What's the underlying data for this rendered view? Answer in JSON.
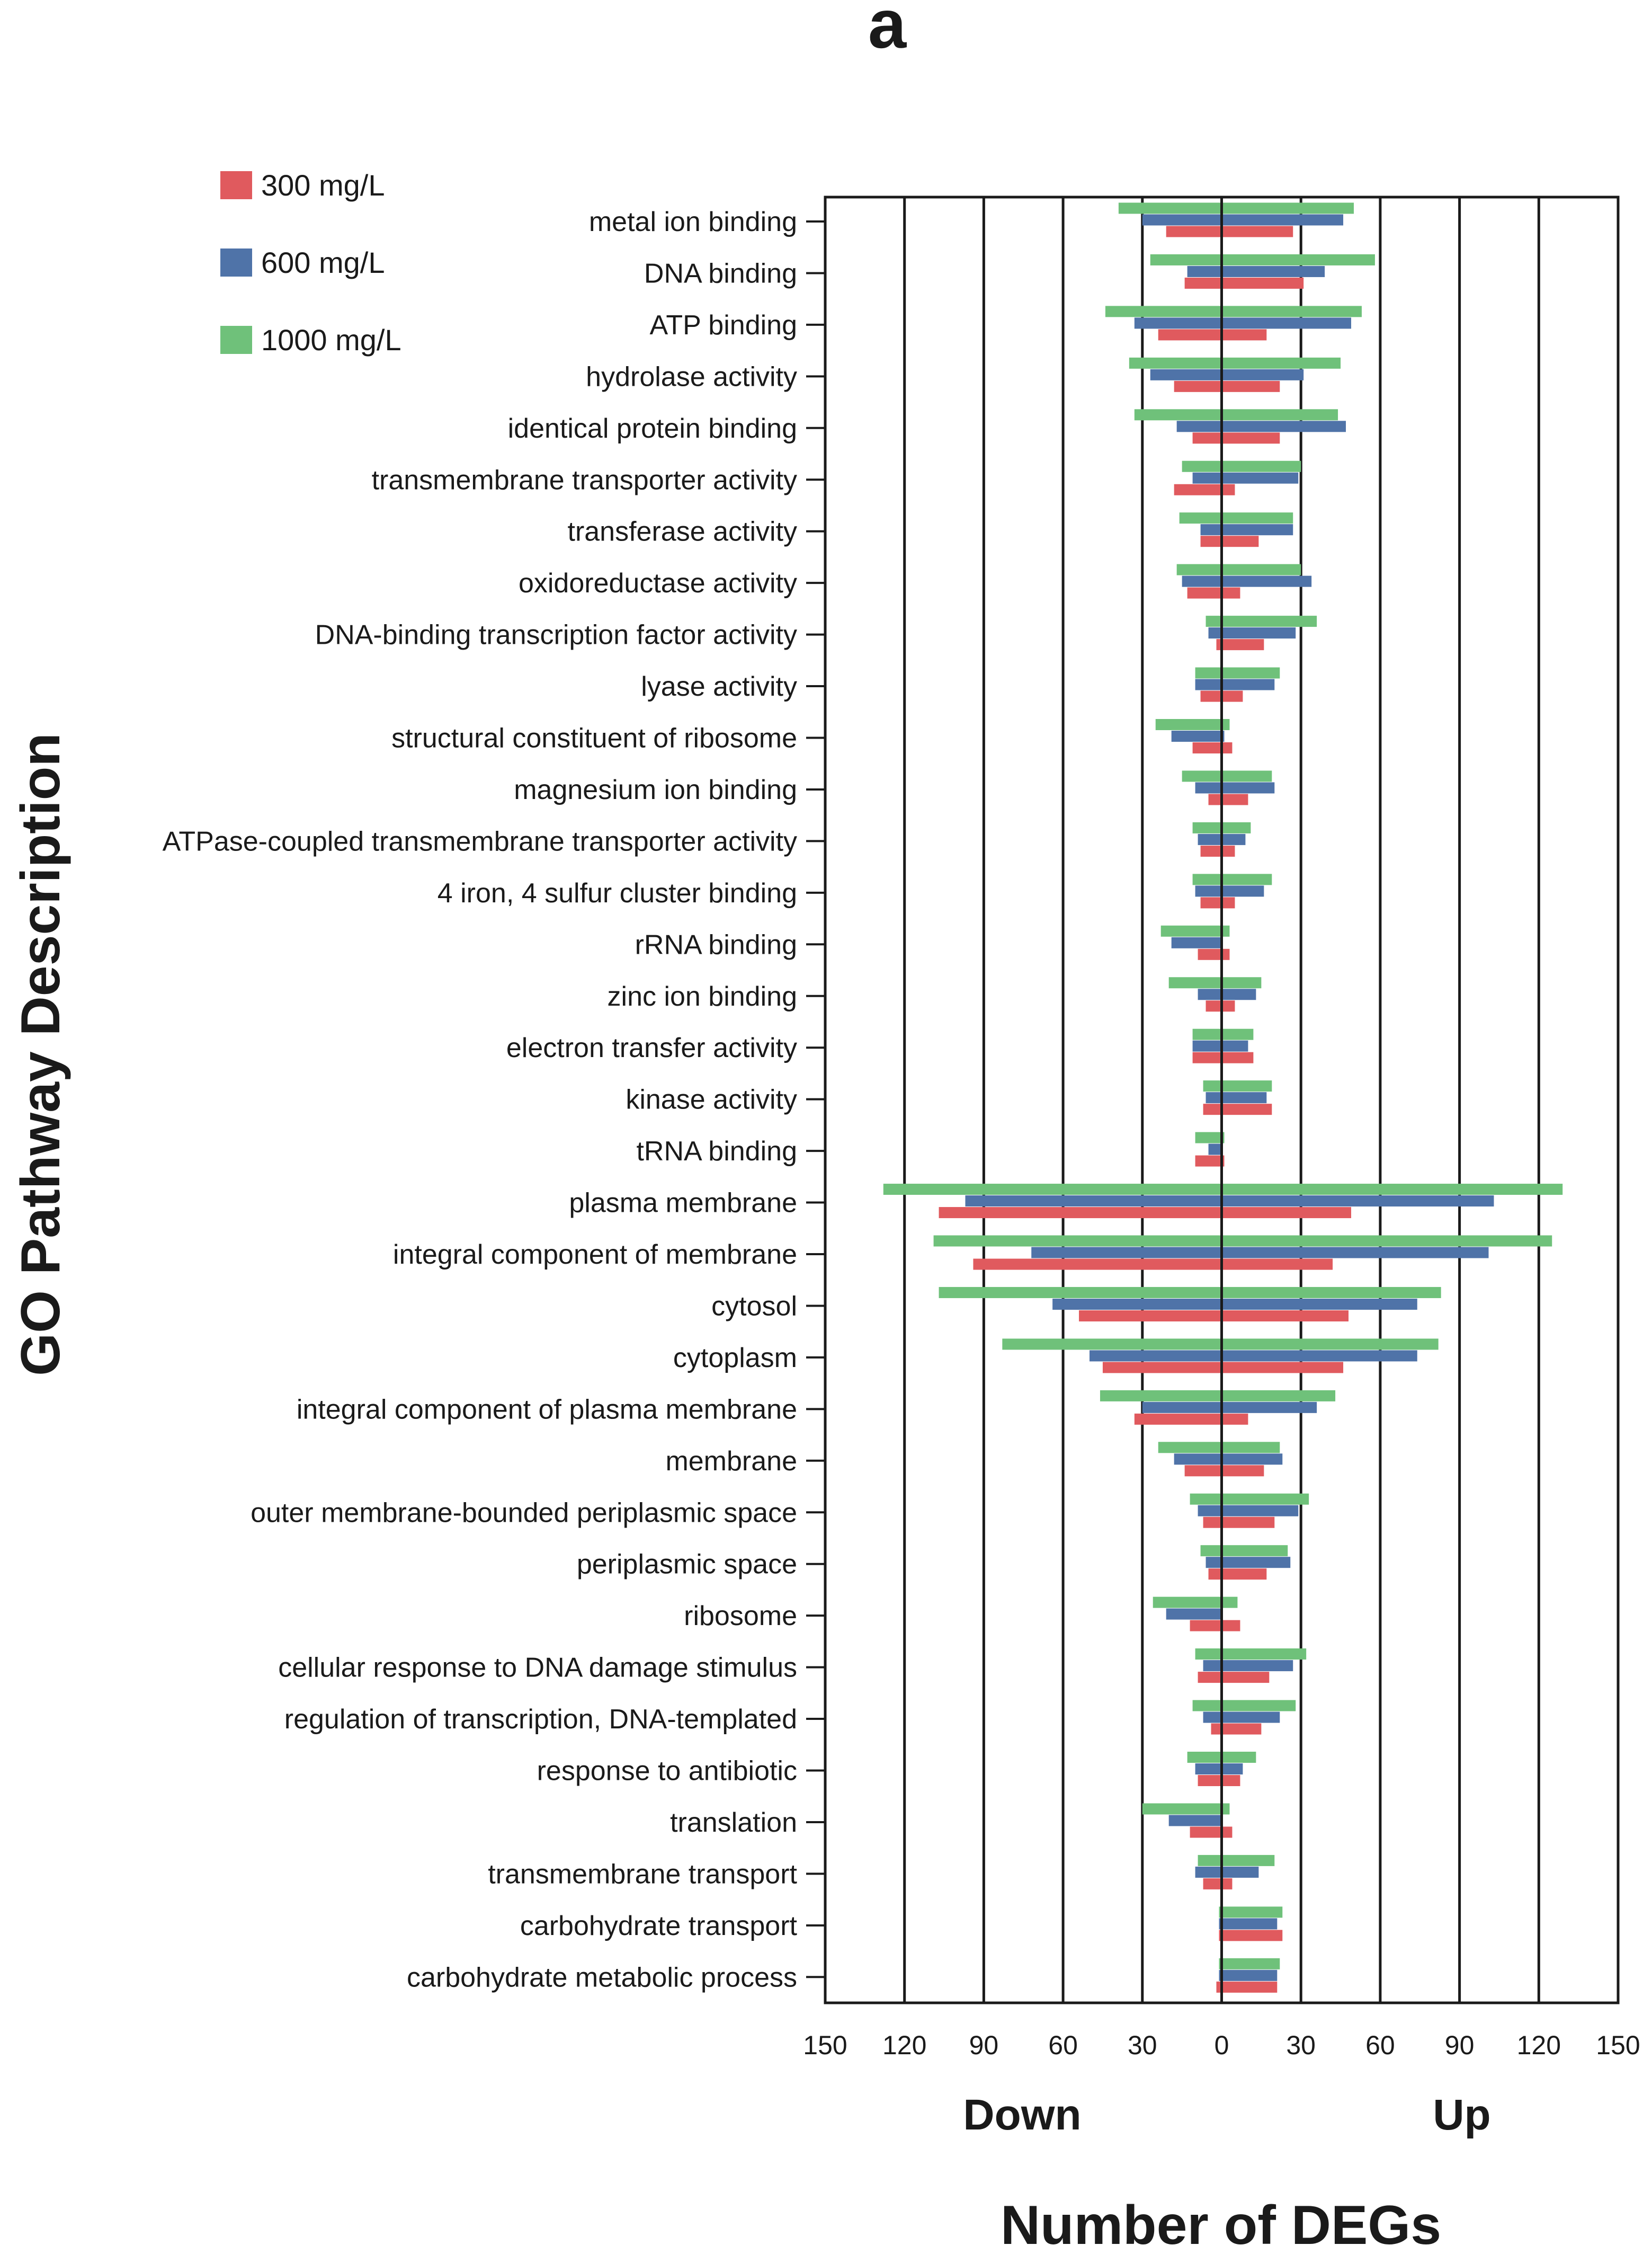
{
  "panel_label": "a",
  "colors": {
    "s300": "#e05a5e",
    "s600": "#4f73a8",
    "s1000": "#6fc17a"
  },
  "chart_data": {
    "type": "bar",
    "orientation": "horizontal-diverging",
    "title": "",
    "xlabel": "Number of DEGs",
    "ylabel": "GO Pathway Description",
    "direction_labels": {
      "down": "Down",
      "up": "Up"
    },
    "xlim": [
      -150,
      150
    ],
    "xticks": [
      -150,
      -120,
      -90,
      -60,
      -30,
      0,
      30,
      60,
      90,
      120,
      150
    ],
    "xtick_labels": [
      "150",
      "120",
      "90",
      "60",
      "30",
      "0",
      "30",
      "60",
      "90",
      "120",
      "150"
    ],
    "grid": "vertical",
    "legend_position": "top-left",
    "categories": [
      "metal ion binding",
      "DNA binding",
      "ATP binding",
      "hydrolase activity",
      "identical protein binding",
      "transmembrane transporter activity",
      "transferase activity",
      "oxidoreductase activity",
      "DNA-binding transcription factor activity",
      "lyase activity",
      "structural constituent of ribosome",
      "magnesium ion binding",
      "ATPase-coupled transmembrane transporter activity",
      "4 iron, 4 sulfur cluster binding",
      "rRNA binding",
      "zinc ion binding",
      "electron transfer activity",
      "kinase activity",
      "tRNA binding",
      "plasma membrane",
      "integral component of membrane",
      "cytosol",
      "cytoplasm",
      "integral component of plasma membrane",
      "membrane",
      "outer membrane-bounded periplasmic space",
      "periplasmic space",
      "ribosome",
      "cellular response to DNA damage stimulus",
      "regulation of transcription, DNA-templated",
      "response to antibiotic",
      "translation",
      "transmembrane transport",
      "carbohydrate transport",
      "carbohydrate metabolic process"
    ],
    "series": [
      {
        "name": "300 mg/L",
        "down": [
          21,
          14,
          24,
          18,
          11,
          18,
          8,
          13,
          2,
          8,
          11,
          5,
          8,
          8,
          9,
          6,
          11,
          7,
          10,
          107,
          94,
          54,
          45,
          33,
          14,
          7,
          5,
          12,
          9,
          4,
          9,
          12,
          7,
          1,
          2
        ],
        "up": [
          27,
          31,
          17,
          22,
          22,
          5,
          14,
          7,
          16,
          8,
          4,
          10,
          5,
          5,
          3,
          5,
          12,
          19,
          1,
          49,
          42,
          48,
          46,
          10,
          16,
          20,
          17,
          7,
          18,
          15,
          7,
          4,
          4,
          23,
          21
        ]
      },
      {
        "name": "600 mg/L",
        "down": [
          30,
          13,
          33,
          27,
          17,
          11,
          8,
          15,
          5,
          10,
          19,
          10,
          9,
          10,
          19,
          9,
          11,
          6,
          5,
          97,
          72,
          64,
          50,
          30,
          18,
          9,
          6,
          21,
          7,
          7,
          10,
          20,
          10,
          1,
          1
        ],
        "up": [
          46,
          39,
          49,
          31,
          47,
          29,
          27,
          34,
          28,
          20,
          1,
          20,
          9,
          16,
          0,
          13,
          10,
          17,
          0,
          103,
          101,
          74,
          74,
          36,
          23,
          29,
          26,
          0,
          27,
          22,
          8,
          0,
          14,
          21,
          21
        ]
      },
      {
        "name": "1000 mg/L",
        "down": [
          39,
          27,
          44,
          35,
          33,
          15,
          16,
          17,
          6,
          10,
          25,
          15,
          11,
          11,
          23,
          20,
          11,
          7,
          10,
          128,
          109,
          107,
          83,
          46,
          24,
          12,
          8,
          26,
          10,
          11,
          13,
          30,
          9,
          1,
          1
        ],
        "up": [
          50,
          58,
          53,
          45,
          44,
          30,
          27,
          30,
          36,
          22,
          3,
          19,
          11,
          19,
          3,
          15,
          12,
          19,
          1,
          129,
          125,
          83,
          82,
          43,
          22,
          33,
          25,
          6,
          32,
          28,
          13,
          3,
          20,
          23,
          22
        ]
      }
    ]
  }
}
